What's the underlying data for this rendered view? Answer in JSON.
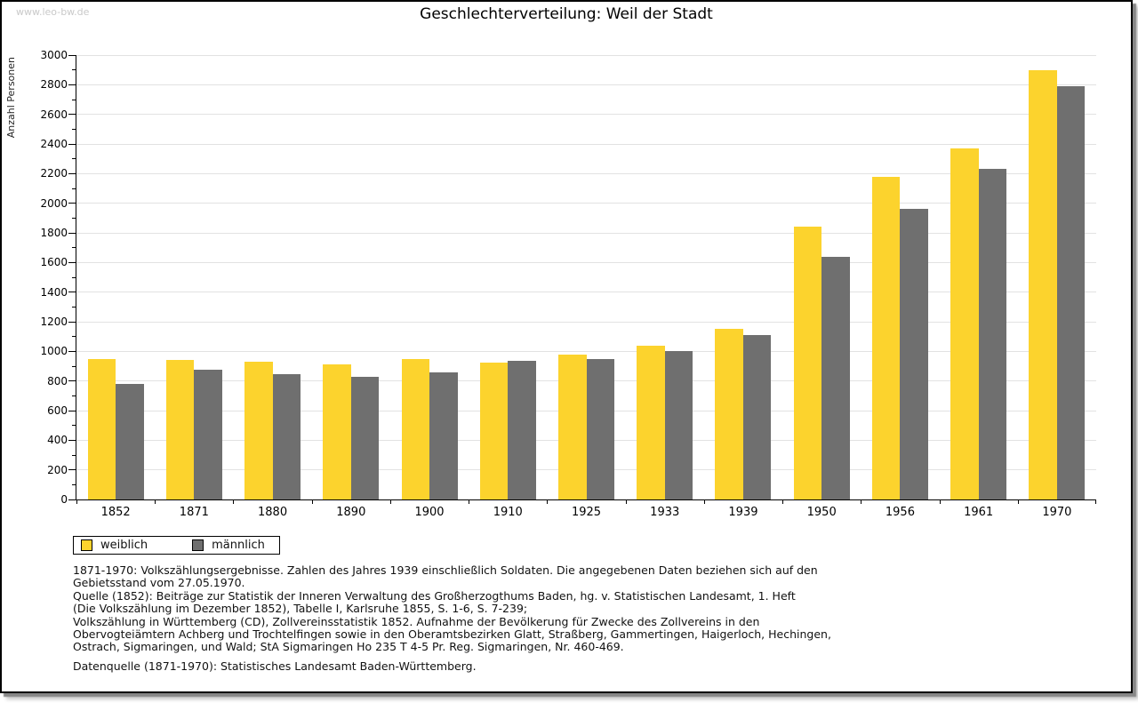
{
  "watermark": "www.leo-bw.de",
  "chart_data": {
    "type": "bar",
    "title": "Geschlechterverteilung: Weil der Stadt",
    "ylabel": "Anzahl Personen",
    "xlabel": "",
    "ylim": [
      0,
      3000
    ],
    "ytick_step": 200,
    "yminor_step": 100,
    "grid": true,
    "legend_position": "bottom-left",
    "categories": [
      "1852",
      "1871",
      "1880",
      "1890",
      "1900",
      "1910",
      "1925",
      "1933",
      "1939",
      "1950",
      "1956",
      "1961",
      "1970"
    ],
    "series": [
      {
        "name": "weiblich",
        "color": "#FCD32D",
        "values": [
          950,
          940,
          930,
          910,
          945,
          925,
          980,
          1040,
          1150,
          1840,
          2175,
          2370,
          2900
        ]
      },
      {
        "name": "männlich",
        "color": "#6F6F6F",
        "values": [
          780,
          875,
          845,
          825,
          855,
          935,
          950,
          1000,
          1110,
          1640,
          1960,
          2230,
          2790
        ]
      }
    ]
  },
  "footer": {
    "source_lines": [
      "1871-1970: Volkszählungsergebnisse. Zahlen des Jahres 1939 einschließlich Soldaten. Die angegebenen Daten beziehen sich auf den",
      "Gebietsstand vom 27.05.1970.",
      "Quelle (1852): Beiträge zur Statistik der Inneren Verwaltung des Großherzogthums Baden, hg. v. Statistischen Landesamt, 1. Heft",
      "(Die Volkszählung im Dezember 1852), Tabelle I, Karlsruhe 1855, S. 1-6, S. 7-239;",
      "Volkszählung in Württemberg (CD), Zollvereinsstatistik 1852. Aufnahme der Bevölkerung für Zwecke des Zollvereins in den",
      "Obervogteiämtern Achberg und Trochtelfingen sowie in den Oberamtsbezirken Glatt, Straßberg, Gammertingen, Haigerloch, Hechingen,",
      "Ostrach, Sigmaringen, und Wald; StA Sigmaringen Ho 235 T 4-5 Pr. Reg. Sigmaringen, Nr. 460-469."
    ],
    "datasource": "Datenquelle (1871-1970): Statistisches Landesamt Baden-Württemberg."
  }
}
